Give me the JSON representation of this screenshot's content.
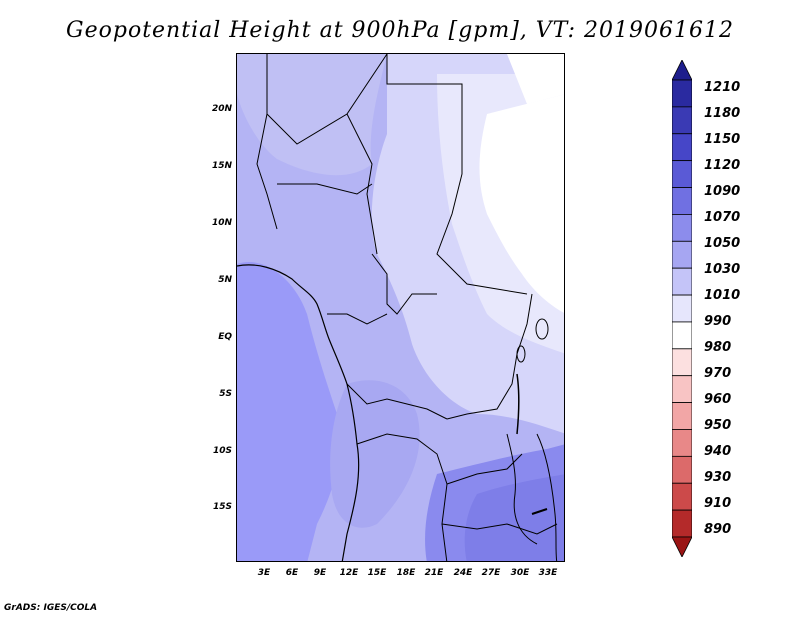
{
  "title": "Geopotential Height at 900hPa [gpm], VT: 2019061612",
  "credit": "GrADS: IGES/COLA",
  "lat_labels": [
    "20N",
    "15N",
    "10N",
    "5N",
    "EQ",
    "5S",
    "10S",
    "15S"
  ],
  "lon_labels": [
    "3E",
    "6E",
    "9E",
    "12E",
    "15E",
    "18E",
    "21E",
    "24E",
    "27E",
    "30E",
    "33E"
  ],
  "colorbar": {
    "levels": [
      "1210",
      "1180",
      "1150",
      "1120",
      "1090",
      "1070",
      "1050",
      "1030",
      "1010",
      "990",
      "980",
      "970",
      "960",
      "950",
      "940",
      "930",
      "910",
      "890"
    ],
    "colors": [
      "#1e1e8c",
      "#2a2aa0",
      "#3a3ab4",
      "#4646c8",
      "#5a5ad6",
      "#7070e2",
      "#8c8cec",
      "#a6a6f2",
      "#c4c4f8",
      "#e6e6fc",
      "#ffffff",
      "#fce0e0",
      "#f8c4c4",
      "#f2a6a6",
      "#e88888",
      "#dc6a6a",
      "#cc4a4a",
      "#b42a2a",
      "#9a1414"
    ]
  },
  "map_colors": {
    "deep": "#9a9af8",
    "mid": "#b4b4f4",
    "light": "#d6d6fa",
    "pale": "#e8e8fc",
    "white": "#ffffff",
    "south": "#7e7ee8",
    "border": "#000000"
  }
}
